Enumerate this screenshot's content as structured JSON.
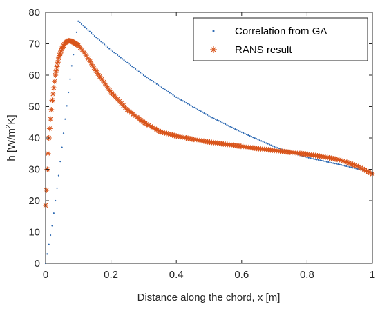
{
  "chart_data": {
    "type": "scatter",
    "xlabel": "Distance along the chord, x [m]",
    "ylabel_parts": {
      "main": "h [W/m",
      "sup": "2",
      "tail": "K]"
    },
    "xlim": [
      0,
      1
    ],
    "ylim": [
      0,
      80
    ],
    "xticks": [
      "0",
      "0.2",
      "0.4",
      "0.6",
      "0.8",
      "1"
    ],
    "xtick_values": [
      0,
      0.2,
      0.4,
      0.6,
      0.8,
      1
    ],
    "yticks": [
      "0",
      "10",
      "20",
      "30",
      "40",
      "50",
      "60",
      "70",
      "80"
    ],
    "ytick_values": [
      0,
      10,
      20,
      30,
      40,
      50,
      60,
      70,
      80
    ],
    "grid": false,
    "legend_position": "top-right",
    "series": [
      {
        "name": "Correlation from GA",
        "marker": "dot",
        "color": "#2e6ab3",
        "points": [
          [
            0,
            0
          ],
          [
            0.02,
            12
          ],
          [
            0.04,
            28
          ],
          [
            0.06,
            46
          ],
          [
            0.08,
            63
          ],
          [
            0.1,
            77.2
          ],
          [
            0.15,
            72.5
          ],
          [
            0.2,
            68
          ],
          [
            0.3,
            60
          ],
          [
            0.4,
            53
          ],
          [
            0.5,
            47
          ],
          [
            0.6,
            41.8
          ],
          [
            0.7,
            37.2
          ],
          [
            0.8,
            33.8
          ],
          [
            0.9,
            31.5
          ],
          [
            1.0,
            29
          ]
        ]
      },
      {
        "name": "RANS result",
        "marker": "asterisk",
        "color": "#d9541a",
        "points": [
          [
            0,
            18.5
          ],
          [
            0.002,
            22
          ],
          [
            0.005,
            30
          ],
          [
            0.01,
            40
          ],
          [
            0.02,
            52
          ],
          [
            0.03,
            60
          ],
          [
            0.04,
            65.5
          ],
          [
            0.05,
            68.5
          ],
          [
            0.06,
            70.3
          ],
          [
            0.07,
            71
          ],
          [
            0.08,
            70.8
          ],
          [
            0.1,
            69.5
          ],
          [
            0.12,
            67
          ],
          [
            0.15,
            62
          ],
          [
            0.2,
            54.5
          ],
          [
            0.25,
            49
          ],
          [
            0.3,
            45
          ],
          [
            0.35,
            42
          ],
          [
            0.4,
            40.6
          ],
          [
            0.45,
            39.6
          ],
          [
            0.5,
            38.7
          ],
          [
            0.55,
            38
          ],
          [
            0.6,
            37.3
          ],
          [
            0.65,
            36.6
          ],
          [
            0.7,
            36
          ],
          [
            0.75,
            35.4
          ],
          [
            0.8,
            34.8
          ],
          [
            0.85,
            34
          ],
          [
            0.9,
            33
          ],
          [
            0.95,
            31.2
          ],
          [
            1.0,
            28.5
          ]
        ]
      }
    ]
  }
}
